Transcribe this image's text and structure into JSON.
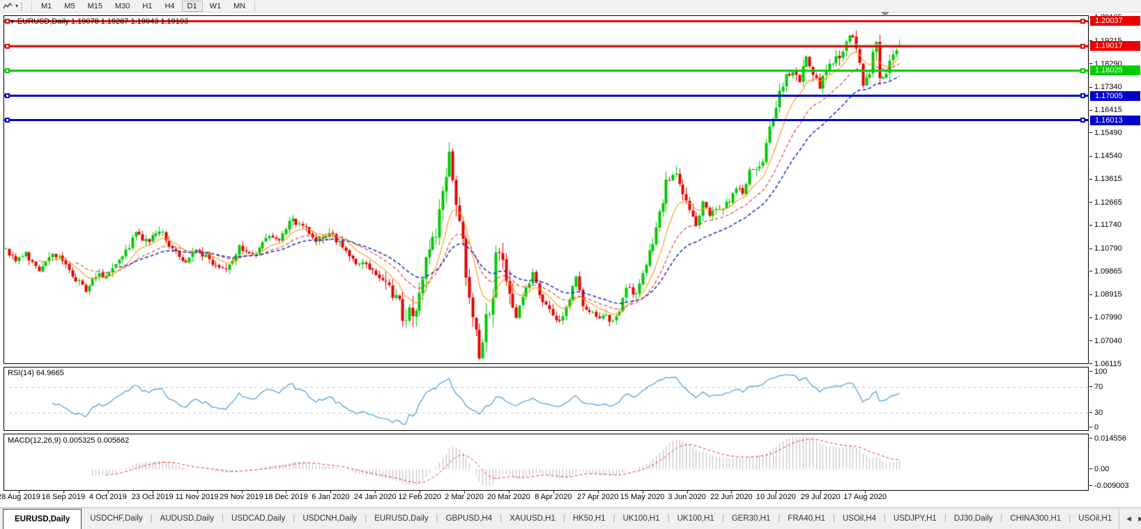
{
  "toolbar": {
    "tool_icon": "polyline-chart-icon",
    "caret": "▾",
    "timeframes": [
      "M1",
      "M5",
      "M15",
      "M30",
      "H1",
      "H4",
      "D1",
      "W1",
      "MN"
    ],
    "active_timeframe": "D1"
  },
  "main_chart": {
    "title": "EURUSD,Daily 1.19078 1.19287 1.19043 1.19103",
    "price_ticks": [
      "1.20165",
      "1.19215",
      "1.18290",
      "1.17340",
      "1.16415",
      "1.15490",
      "1.14540",
      "1.13615",
      "1.12665",
      "1.11740",
      "1.10790",
      "1.09865",
      "1.08915",
      "1.07990",
      "1.07040",
      "1.06115"
    ],
    "hlines": [
      {
        "value": "1.20037",
        "price": 1.20037,
        "color": "#EE0000"
      },
      {
        "value": "1.19017",
        "price": 1.19017,
        "color": "#EE0000"
      },
      {
        "value": "1.18025",
        "price": 1.18025,
        "color": "#00CC00"
      },
      {
        "value": "1.17005",
        "price": 1.17005,
        "color": "#0000CC"
      },
      {
        "value": "1.16013",
        "price": 1.16013,
        "color": "#0000CC"
      }
    ],
    "current_price": {
      "value": "1.19103",
      "color": "#C0C0C0"
    }
  },
  "rsi_panel": {
    "label": "RSI(14) 64.9665",
    "ticks": [
      {
        "v": 100,
        "label": "100"
      },
      {
        "v": 70,
        "label": "70"
      },
      {
        "v": 30,
        "label": "30"
      },
      {
        "v": 0,
        "label": "0"
      }
    ]
  },
  "macd_panel": {
    "label": "MACD(12,26,9) 0.005325 0.005662",
    "ticks": [
      {
        "v": 0.014556,
        "label": "0.014556"
      },
      {
        "v": 0,
        "label": "0.00"
      },
      {
        "v": -0.009003,
        "label": "-0.009003"
      }
    ]
  },
  "date_axis": [
    "28 Aug 2019",
    "16 Sep 2019",
    "4 Oct 2019",
    "23 Oct 2019",
    "11 Nov 2019",
    "29 Nov 2019",
    "18 Dec 2019",
    "6 Jan 2020",
    "24 Jan 2020",
    "12 Feb 2020",
    "2 Mar 2020",
    "20 Mar 2020",
    "8 Apr 2020",
    "27 Apr 2020",
    "15 May 2020",
    "3 Jun 2020",
    "22 Jun 2020",
    "10 Jul 2020",
    "29 Jul 2020",
    "17 Aug 2020"
  ],
  "tab_bar": {
    "tabs": [
      {
        "label": "EURUSD,Daily",
        "active": true
      },
      {
        "label": "USDCHF,Daily",
        "active": false
      },
      {
        "label": "AUDUSD,Daily",
        "active": false
      },
      {
        "label": "USDCAD,Daily",
        "active": false
      },
      {
        "label": "USDCNH,Daily",
        "active": false
      },
      {
        "label": "EURUSD,Daily",
        "active": false
      },
      {
        "label": "GBPUSD,H4",
        "active": false
      },
      {
        "label": "XAUUSD,H1",
        "active": false
      },
      {
        "label": "HK50,H1",
        "active": false
      },
      {
        "label": "UK100,H1",
        "active": false
      },
      {
        "label": "UK100,H1",
        "active": false
      },
      {
        "label": "GER30,H1",
        "active": false
      },
      {
        "label": "FRA40,H1",
        "active": false
      },
      {
        "label": "USOil,H4",
        "active": false
      },
      {
        "label": "USDJPY,H1",
        "active": false
      },
      {
        "label": "DJ30,Daily",
        "active": false
      },
      {
        "label": "CHINA300,H1",
        "active": false
      },
      {
        "label": "USOil,H1",
        "active": false
      }
    ],
    "scroll_left": "◀",
    "scroll_right": "▶"
  },
  "chart_data": {
    "type": "candlestick",
    "symbol": "EURUSD",
    "timeframe": "Daily",
    "last_candle": {
      "open": 1.19078,
      "high": 1.19287,
      "low": 1.19043,
      "close": 1.19103
    },
    "y_range": [
      1.06115,
      1.2027
    ],
    "x_range_labels": [
      "28 Aug 2019",
      "17 Aug 2020"
    ],
    "candle_count": 269,
    "bull_color": "#00C800",
    "bear_color": "#E80000",
    "close_anchors": [
      [
        0,
        1.108
      ],
      [
        3,
        1.1035
      ],
      [
        6,
        1.106
      ],
      [
        10,
        1.1
      ],
      [
        14,
        1.107
      ],
      [
        18,
        1.101
      ],
      [
        24,
        1.0905
      ],
      [
        27,
        1.0965
      ],
      [
        31,
        1.0985
      ],
      [
        35,
        1.1045
      ],
      [
        39,
        1.114
      ],
      [
        43,
        1.1105
      ],
      [
        46,
        1.116
      ],
      [
        50,
        1.107
      ],
      [
        54,
        1.1035
      ],
      [
        58,
        1.1075
      ],
      [
        62,
        1.101
      ],
      [
        66,
        1.0995
      ],
      [
        70,
        1.108
      ],
      [
        74,
        1.106
      ],
      [
        78,
        1.1115
      ],
      [
        82,
        1.112
      ],
      [
        86,
        1.12
      ],
      [
        90,
        1.116
      ],
      [
        93,
        1.111
      ],
      [
        97,
        1.114
      ],
      [
        101,
        1.109
      ],
      [
        105,
        1.103
      ],
      [
        109,
        1.1005
      ],
      [
        113,
        1.0945
      ],
      [
        117,
        1.087
      ],
      [
        120,
        1.0795
      ],
      [
        123,
        1.0855
      ],
      [
        126,
        1.102
      ],
      [
        129,
        1.1135
      ],
      [
        133,
        1.1448
      ],
      [
        135,
        1.128
      ],
      [
        137,
        1.1105
      ],
      [
        139,
        1.087
      ],
      [
        142,
        1.066
      ],
      [
        144,
        1.079
      ],
      [
        146,
        1.0895
      ],
      [
        147,
        1.108
      ],
      [
        149,
        1.103
      ],
      [
        151,
        1.09
      ],
      [
        153,
        1.079
      ],
      [
        155,
        1.089
      ],
      [
        158,
        1.0975
      ],
      [
        161,
        1.085
      ],
      [
        164,
        1.082
      ],
      [
        166,
        1.0775
      ],
      [
        169,
        1.087
      ],
      [
        171,
        1.0965
      ],
      [
        173,
        1.0845
      ],
      [
        176,
        1.0815
      ],
      [
        179,
        1.081
      ],
      [
        182,
        1.079
      ],
      [
        184,
        1.0825
      ],
      [
        186,
        1.092
      ],
      [
        189,
        1.09
      ],
      [
        191,
        1.098
      ],
      [
        194,
        1.11
      ],
      [
        196,
        1.123
      ],
      [
        198,
        1.134
      ],
      [
        201,
        1.137
      ],
      [
        203,
        1.13
      ],
      [
        207,
        1.118
      ],
      [
        209,
        1.126
      ],
      [
        211,
        1.122
      ],
      [
        213,
        1.124
      ],
      [
        215,
        1.125
      ],
      [
        217,
        1.128
      ],
      [
        219,
        1.133
      ],
      [
        221,
        1.13
      ],
      [
        223,
        1.139
      ],
      [
        225,
        1.141
      ],
      [
        227,
        1.144
      ],
      [
        229,
        1.156
      ],
      [
        231,
        1.164
      ],
      [
        232,
        1.171
      ],
      [
        234,
        1.179
      ],
      [
        236,
        1.178
      ],
      [
        238,
        1.176
      ],
      [
        240,
        1.1865
      ],
      [
        242,
        1.179
      ],
      [
        244,
        1.174
      ],
      [
        246,
        1.1815
      ],
      [
        248,
        1.184
      ],
      [
        250,
        1.187
      ],
      [
        253,
        1.194
      ],
      [
        255,
        1.19
      ],
      [
        257,
        1.176
      ],
      [
        259,
        1.179
      ],
      [
        261,
        1.193
      ],
      [
        262,
        1.177
      ],
      [
        264,
        1.18
      ],
      [
        266,
        1.186
      ],
      [
        268,
        1.19103
      ]
    ],
    "volatility": {
      "base": 0.0035,
      "windows": [
        [
          114,
          152,
          0.0085
        ],
        [
          193,
          206,
          0.0055
        ],
        [
          225,
          268,
          0.005
        ]
      ]
    },
    "moving_averages": [
      {
        "period": 10,
        "color": "#FF9900",
        "style": "solid",
        "width": 1.1
      },
      {
        "period": 21,
        "color": "#E03030",
        "style": "dashed",
        "width": 1.1
      },
      {
        "period": 34,
        "color": "#2030C8",
        "style": "dashed",
        "width": 1.6
      }
    ],
    "horizontal_lines": [
      {
        "price": 1.20037,
        "color": "#EE0000"
      },
      {
        "price": 1.19017,
        "color": "#EE0000"
      },
      {
        "price": 1.18025,
        "color": "#00CC00"
      },
      {
        "price": 1.17005,
        "color": "#0000CC"
      },
      {
        "price": 1.16013,
        "color": "#0000CC"
      }
    ],
    "current_price_line": {
      "price": 1.19103,
      "color": "#C0C0C0"
    },
    "indicators": [
      {
        "type": "RSI",
        "period": 14,
        "current": 64.9665,
        "range": [
          0,
          100
        ],
        "levels": [
          70,
          30
        ],
        "color": "#3E9BDE"
      },
      {
        "type": "MACD",
        "fast": 12,
        "slow": 26,
        "signal": 9,
        "current_macd": 0.005325,
        "current_signal": 0.005662,
        "range": [
          -0.009003,
          0.014556
        ],
        "histogram_color": "#BBBBBB",
        "signal_color": "#E03030"
      }
    ]
  }
}
